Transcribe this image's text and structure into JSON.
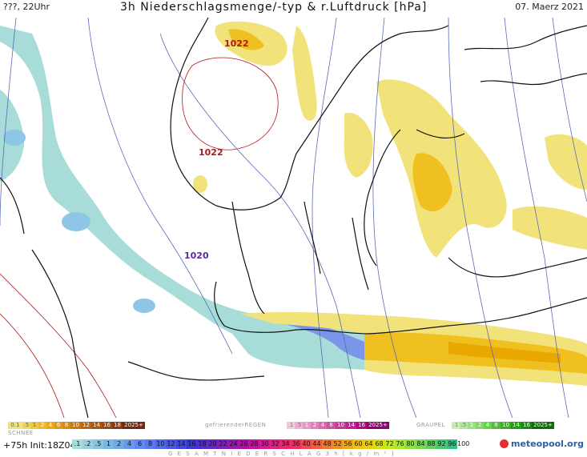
{
  "header": {
    "left_label": "???, 22Uhr",
    "title": "3h Niederschlagsmenge/-typ & r.Luftdruck [hPa]",
    "date": "07. Maerz 2021"
  },
  "map": {
    "isobar_labels": [
      {
        "text": "1022",
        "color": "#b01818"
      },
      {
        "text": "1022",
        "color": "#b01818"
      },
      {
        "text": "1020",
        "color": "#5a2a9a"
      }
    ],
    "colors": {
      "rain_light": "#f2e27a",
      "rain_mid": "#f0c020",
      "rain_heavy": "#e8a800",
      "snow_light": "#a8dcd8",
      "snow_mid": "#8fc6e6",
      "snow_heavy": "#7a96e8",
      "isobar": "#5a6ab8",
      "coast": "#111111"
    }
  },
  "legend": {
    "rain_label": "",
    "freezing_label": "gefrierenderREGEN",
    "graupel_label": "GRAUPEL",
    "snow_label": "SCHNEE",
    "rain_scale": [
      "0.1",
      ".5",
      "1",
      "2",
      "4",
      "6",
      "8",
      "10",
      "12",
      "14",
      "16",
      "18",
      "2025+"
    ],
    "freezing_scale": [
      ".1",
      ".5",
      "1",
      "2",
      "4",
      "8",
      "10",
      "14",
      "16",
      "2025+"
    ],
    "graupel_scale": [
      ".1",
      ".5",
      "1",
      "2",
      "4",
      "8",
      "10",
      "14",
      "16",
      "2025+"
    ],
    "snow_scale": [
      ".1",
      ".2",
      ".5",
      "1",
      "2",
      "4",
      "6",
      "8",
      "10",
      "12",
      "14",
      "16",
      "18",
      "20",
      "22",
      "24",
      "26",
      "28",
      "30",
      "32",
      "34",
      "36",
      "40",
      "44",
      "48",
      "52",
      "56",
      "60",
      "64",
      "68",
      "72",
      "76",
      "80",
      "84",
      "88",
      "92",
      "96",
      "100"
    ],
    "forecast_info": "+75h  Init:18Z04MAR2021",
    "total_label": "G E S A M T N I E D E R S C H L A G   3 h   [ k g / m ² ]",
    "logo_text": "meteopool.org"
  }
}
